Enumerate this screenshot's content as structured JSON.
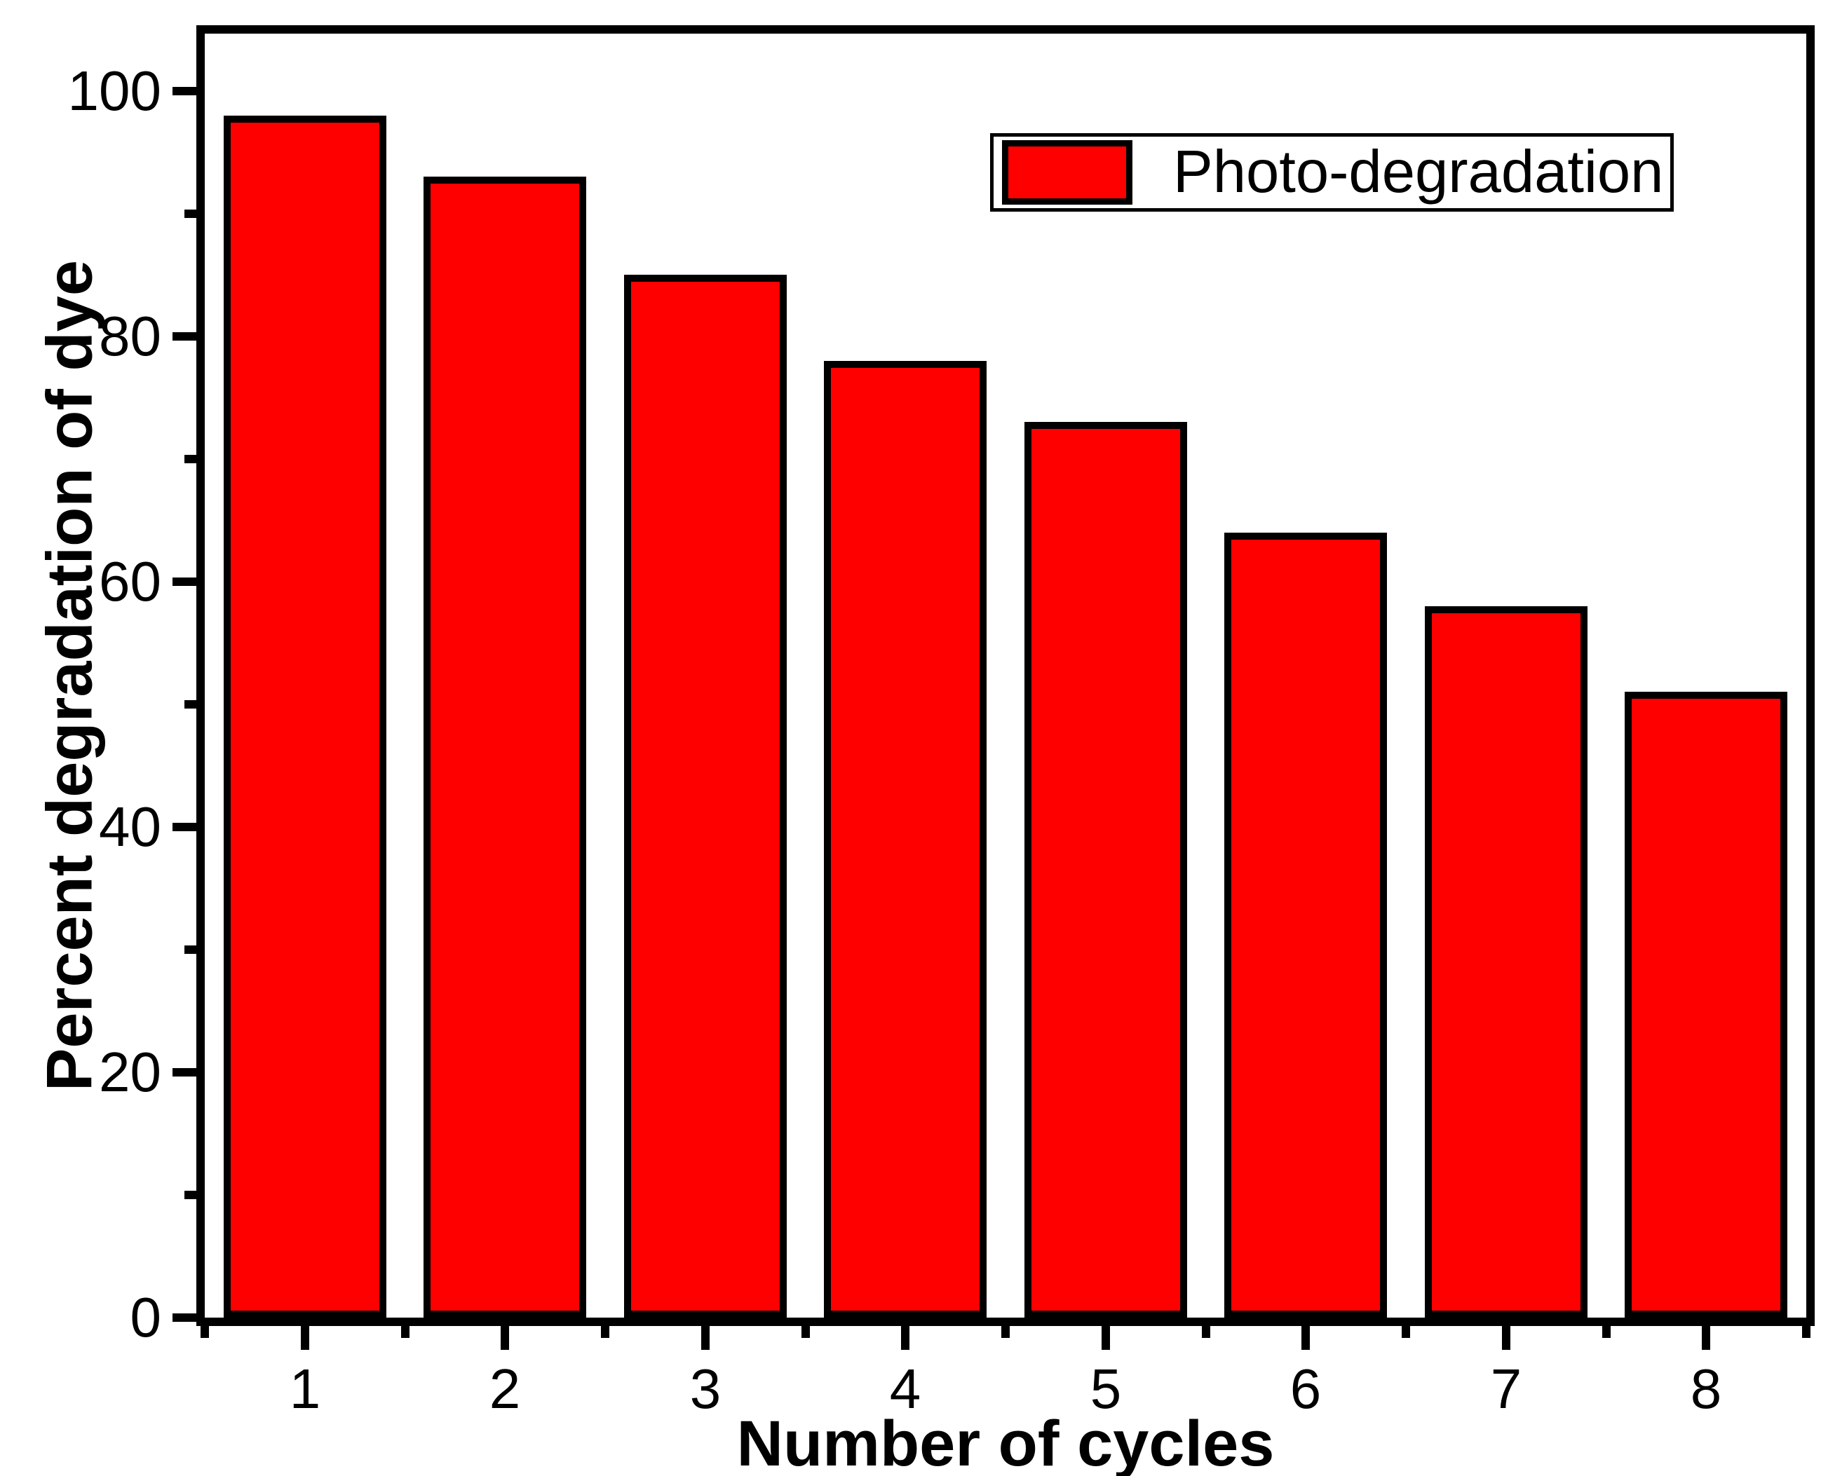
{
  "chart_data": {
    "type": "bar",
    "title": "",
    "xlabel": "Number of cycles",
    "ylabel": "Percent degradation of dye",
    "categories": [
      "1",
      "2",
      "3",
      "4",
      "5",
      "6",
      "7",
      "8"
    ],
    "series": [
      {
        "name": "Photo-degradation",
        "values": [
          98,
          93,
          85,
          78,
          73,
          64,
          58,
          51
        ]
      }
    ],
    "ylim": [
      0,
      105
    ],
    "yticks_major": [
      0,
      20,
      40,
      60,
      80,
      100
    ],
    "yticks_minor": [
      10,
      30,
      50,
      70,
      90
    ],
    "grid": false,
    "legend": {
      "label": "Photo-degradation",
      "position": "top-right"
    },
    "colors": {
      "bar_fill": "#FF0000",
      "bar_border": "#000000",
      "axis": "#000000",
      "background": "#FFFFFF"
    }
  }
}
